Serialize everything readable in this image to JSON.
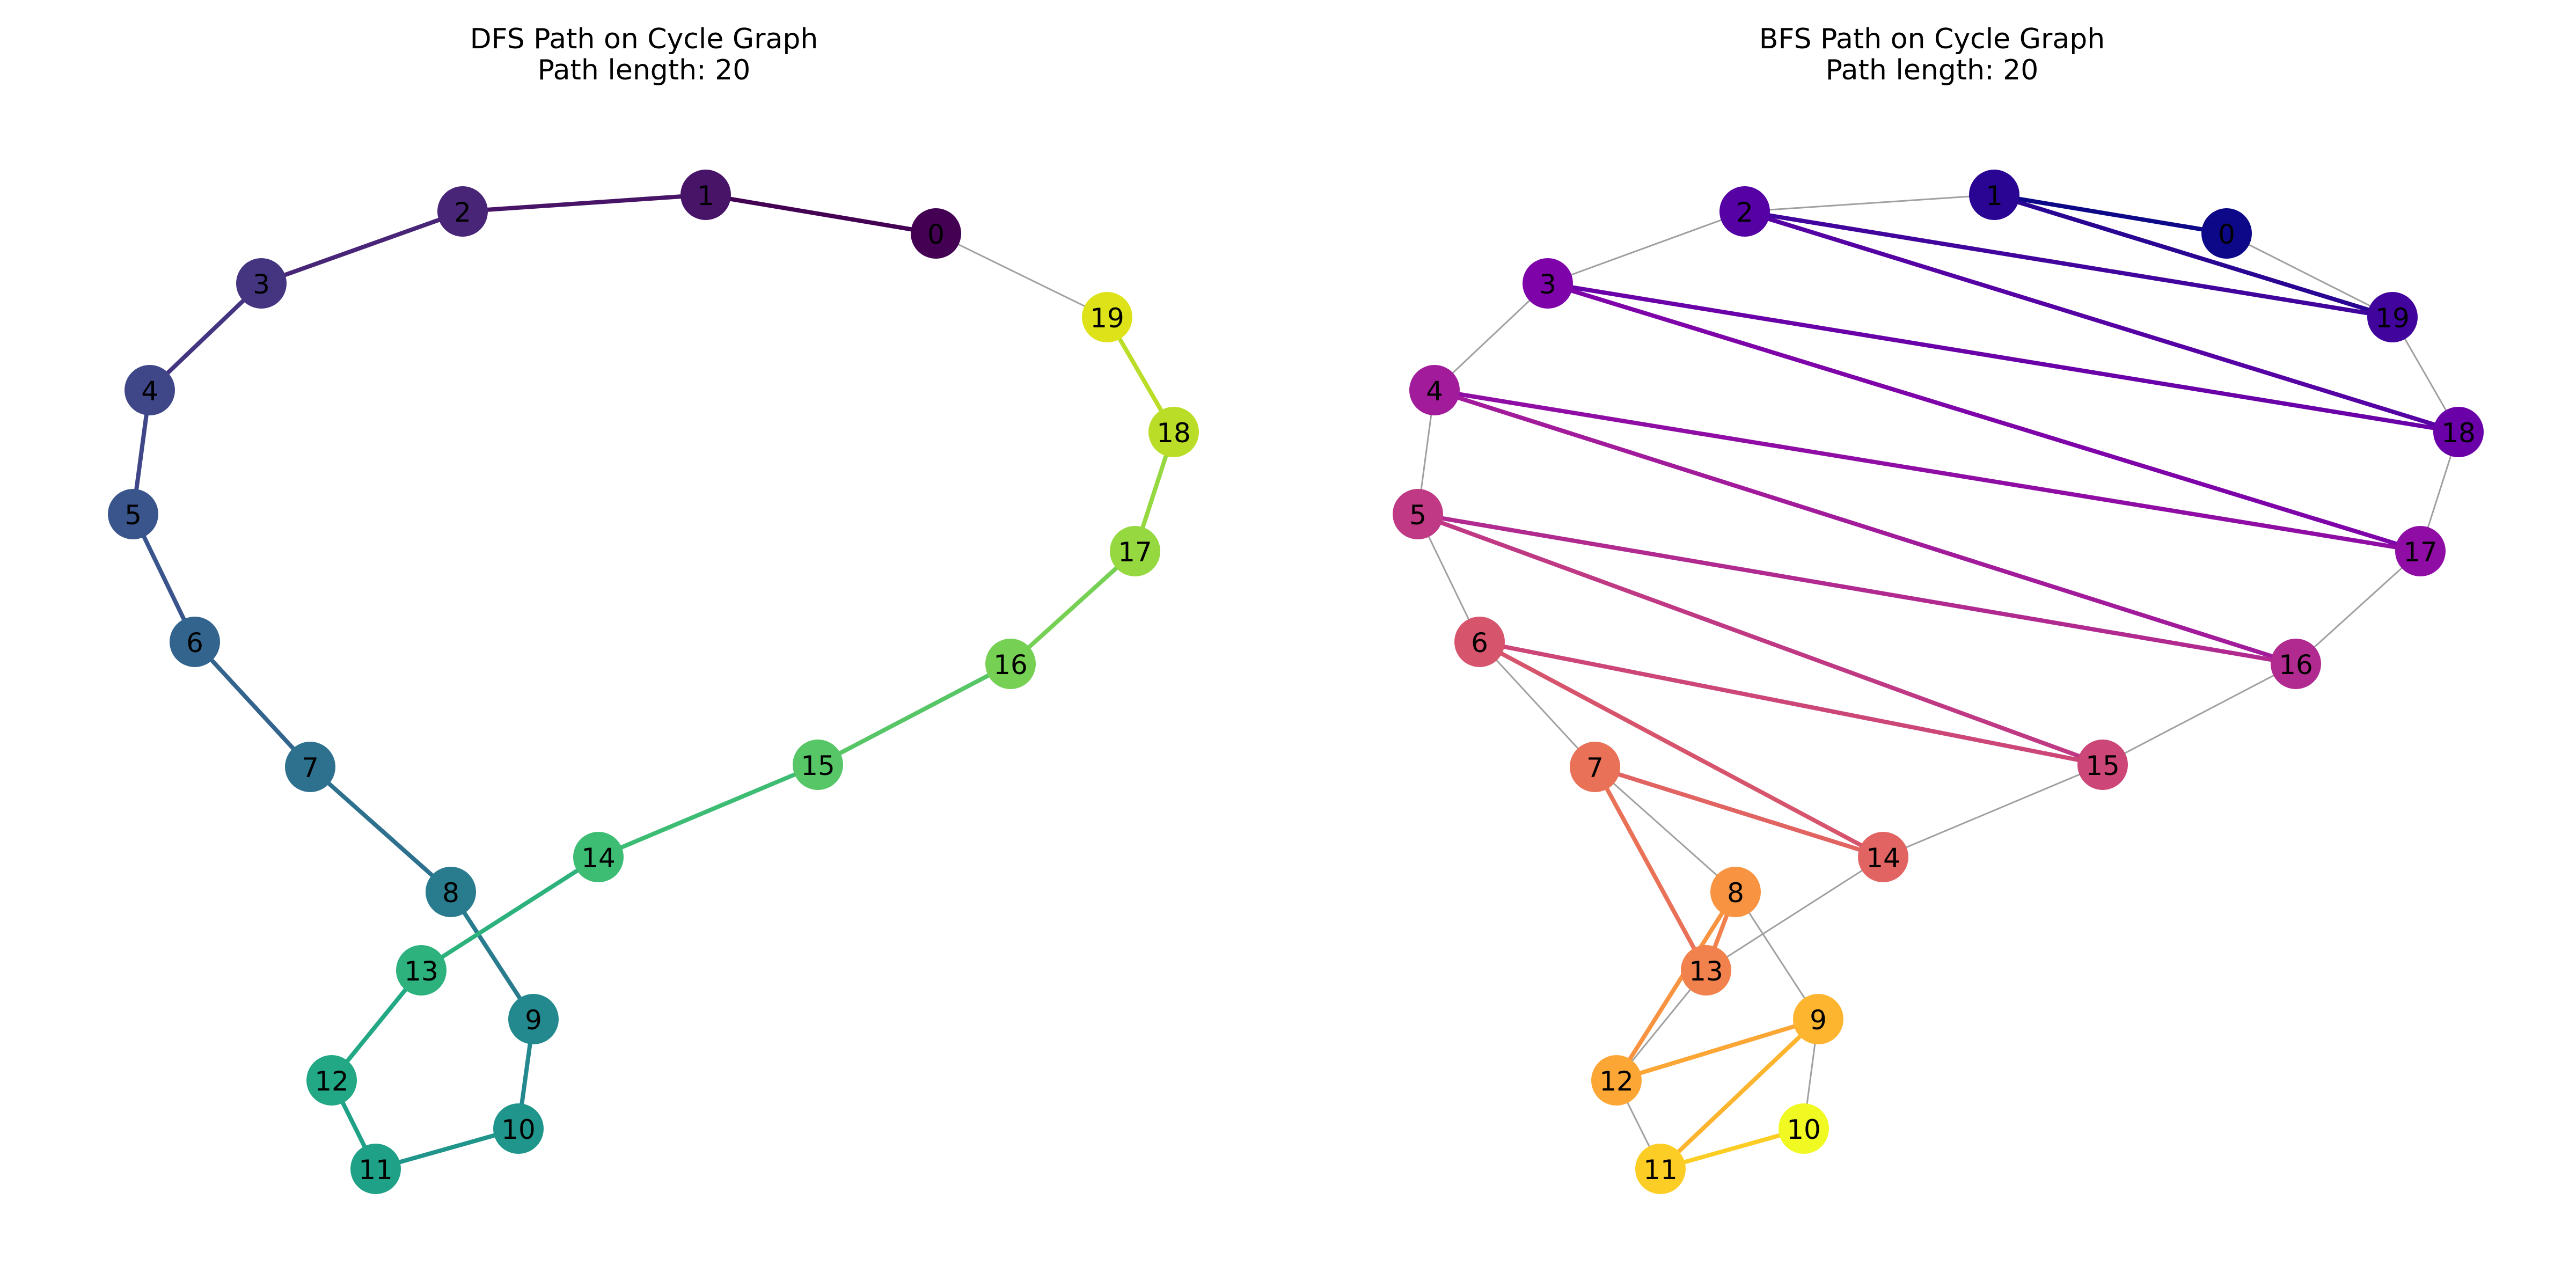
{
  "panels": [
    {
      "id": "dfs",
      "title": "DFS Path on Cycle Graph",
      "subtitle": "Path length: 20",
      "colormap": "viridis",
      "base_edge_color": "#a0a0a0",
      "nodes": [
        {
          "id": "0",
          "color": "#440154"
        },
        {
          "id": "1",
          "color": "#481467"
        },
        {
          "id": "2",
          "color": "#482576"
        },
        {
          "id": "3",
          "color": "#453581"
        },
        {
          "id": "4",
          "color": "#3f4788"
        },
        {
          "id": "5",
          "color": "#39558c"
        },
        {
          "id": "6",
          "color": "#32648e"
        },
        {
          "id": "7",
          "color": "#2d718e"
        },
        {
          "id": "8",
          "color": "#297b8e"
        },
        {
          "id": "9",
          "color": "#23898e"
        },
        {
          "id": "10",
          "color": "#1f958b"
        },
        {
          "id": "11",
          "color": "#1fa187"
        },
        {
          "id": "12",
          "color": "#22a884"
        },
        {
          "id": "13",
          "color": "#2db27d"
        },
        {
          "id": "14",
          "color": "#3dbc74"
        },
        {
          "id": "15",
          "color": "#56c667"
        },
        {
          "id": "16",
          "color": "#75d054"
        },
        {
          "id": "17",
          "color": "#95d840"
        },
        {
          "id": "18",
          "color": "#bade28"
        },
        {
          "id": "19",
          "color": "#dde318"
        }
      ],
      "base_edges": [
        [
          "0",
          "19"
        ]
      ],
      "path_edges": [
        {
          "from": "0",
          "to": "1",
          "color": "#440154"
        },
        {
          "from": "1",
          "to": "2",
          "color": "#481467"
        },
        {
          "from": "2",
          "to": "3",
          "color": "#482576"
        },
        {
          "from": "3",
          "to": "4",
          "color": "#453581"
        },
        {
          "from": "4",
          "to": "5",
          "color": "#3f4788"
        },
        {
          "from": "5",
          "to": "6",
          "color": "#39558c"
        },
        {
          "from": "6",
          "to": "7",
          "color": "#32648e"
        },
        {
          "from": "7",
          "to": "8",
          "color": "#2d718e"
        },
        {
          "from": "8",
          "to": "9",
          "color": "#297b8e"
        },
        {
          "from": "9",
          "to": "10",
          "color": "#23898e"
        },
        {
          "from": "10",
          "to": "11",
          "color": "#1f958b"
        },
        {
          "from": "11",
          "to": "12",
          "color": "#1fa187"
        },
        {
          "from": "12",
          "to": "13",
          "color": "#22a884"
        },
        {
          "from": "13",
          "to": "14",
          "color": "#2db27d"
        },
        {
          "from": "14",
          "to": "15",
          "color": "#3dbc74"
        },
        {
          "from": "15",
          "to": "16",
          "color": "#56c667"
        },
        {
          "from": "16",
          "to": "17",
          "color": "#75d054"
        },
        {
          "from": "17",
          "to": "18",
          "color": "#95d840"
        },
        {
          "from": "18",
          "to": "19",
          "color": "#bade28"
        }
      ]
    },
    {
      "id": "bfs",
      "title": "BFS Path on Cycle Graph",
      "subtitle": "Path length: 20",
      "colormap": "plasma",
      "base_edge_color": "#a0a0a0",
      "nodes": [
        {
          "id": "0",
          "color": "#0d0887"
        },
        {
          "id": "1",
          "color": "#2a0593"
        },
        {
          "id": "19",
          "color": "#41049d"
        },
        {
          "id": "2",
          "color": "#5601a4"
        },
        {
          "id": "18",
          "color": "#6a00a8"
        },
        {
          "id": "3",
          "color": "#7e03a8"
        },
        {
          "id": "17",
          "color": "#8f0da4"
        },
        {
          "id": "4",
          "color": "#a11b9b"
        },
        {
          "id": "16",
          "color": "#b12a90"
        },
        {
          "id": "5",
          "color": "#bf3984"
        },
        {
          "id": "15",
          "color": "#cc4778"
        },
        {
          "id": "6",
          "color": "#d6556d"
        },
        {
          "id": "14",
          "color": "#e16462"
        },
        {
          "id": "7",
          "color": "#e97158"
        },
        {
          "id": "13",
          "color": "#f1814d"
        },
        {
          "id": "8",
          "color": "#f89441"
        },
        {
          "id": "12",
          "color": "#fca636"
        },
        {
          "id": "9",
          "color": "#fdb42f"
        },
        {
          "id": "11",
          "color": "#fcce25"
        },
        {
          "id": "10",
          "color": "#f0f921"
        }
      ],
      "base_edges": [
        [
          "0",
          "1"
        ],
        [
          "1",
          "2"
        ],
        [
          "2",
          "3"
        ],
        [
          "3",
          "4"
        ],
        [
          "4",
          "5"
        ],
        [
          "5",
          "6"
        ],
        [
          "6",
          "7"
        ],
        [
          "7",
          "8"
        ],
        [
          "8",
          "9"
        ],
        [
          "9",
          "10"
        ],
        [
          "10",
          "11"
        ],
        [
          "11",
          "12"
        ],
        [
          "12",
          "13"
        ],
        [
          "13",
          "14"
        ],
        [
          "14",
          "15"
        ],
        [
          "15",
          "16"
        ],
        [
          "16",
          "17"
        ],
        [
          "17",
          "18"
        ],
        [
          "18",
          "19"
        ],
        [
          "19",
          "0"
        ]
      ],
      "path_edges": [
        {
          "from": "0",
          "to": "1",
          "color": "#0d0887"
        },
        {
          "from": "1",
          "to": "19",
          "color": "#2a0593"
        },
        {
          "from": "19",
          "to": "2",
          "color": "#41049d"
        },
        {
          "from": "2",
          "to": "18",
          "color": "#5601a4"
        },
        {
          "from": "18",
          "to": "3",
          "color": "#6a00a8"
        },
        {
          "from": "3",
          "to": "17",
          "color": "#7e03a8"
        },
        {
          "from": "17",
          "to": "4",
          "color": "#8f0da4"
        },
        {
          "from": "4",
          "to": "16",
          "color": "#a11b9b"
        },
        {
          "from": "16",
          "to": "5",
          "color": "#b12a90"
        },
        {
          "from": "5",
          "to": "15",
          "color": "#bf3984"
        },
        {
          "from": "15",
          "to": "6",
          "color": "#cc4778"
        },
        {
          "from": "6",
          "to": "14",
          "color": "#d6556d"
        },
        {
          "from": "14",
          "to": "7",
          "color": "#e16462"
        },
        {
          "from": "7",
          "to": "13",
          "color": "#e97158"
        },
        {
          "from": "13",
          "to": "8",
          "color": "#f1814d"
        },
        {
          "from": "8",
          "to": "12",
          "color": "#f89441"
        },
        {
          "from": "12",
          "to": "9",
          "color": "#fca636"
        },
        {
          "from": "9",
          "to": "11",
          "color": "#fdb42f"
        },
        {
          "from": "11",
          "to": "10",
          "color": "#fcce25"
        }
      ]
    }
  ]
}
